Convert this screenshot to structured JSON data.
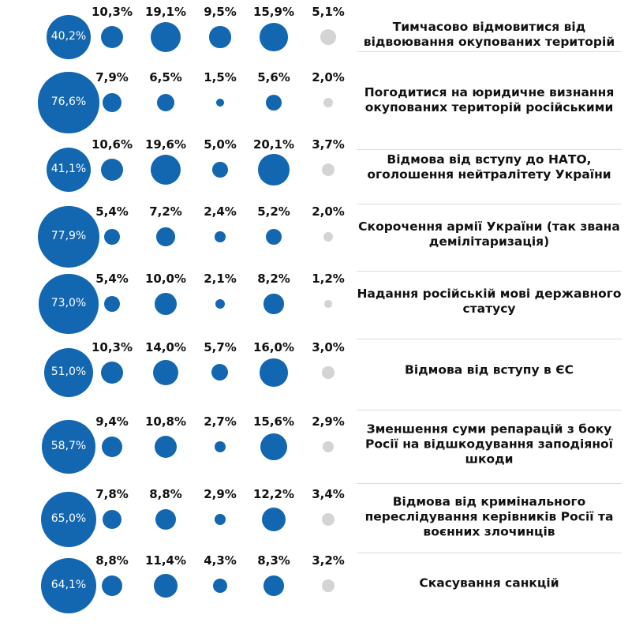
{
  "colors": {
    "main": "#1366b0",
    "secondary": "#1366b0",
    "last": "#d4d4d4"
  },
  "chart_data": {
    "type": "bubble-table",
    "rows": [
      {
        "label": "Тимчасово відмовитися від відвоювання окупованих територій",
        "main": "40,2%",
        "values": [
          "10,3%",
          "19,1%",
          "9,5%",
          "15,9%",
          "5,1%"
        ]
      },
      {
        "label": "Погодитися на юридичне визнання окупованих територій російськими",
        "main": "76,6%",
        "values": [
          "7,9%",
          "6,5%",
          "1,5%",
          "5,6%",
          "2,0%"
        ]
      },
      {
        "label": "Відмова від вступу до НАТО, оголошення нейтралітету України",
        "main": "41,1%",
        "values": [
          "10,6%",
          "19,6%",
          "5,0%",
          "20,1%",
          "3,7%"
        ]
      },
      {
        "label": "Скорочення армії України (так звана демілітаризація)",
        "main": "77,9%",
        "values": [
          "5,4%",
          "7,2%",
          "2,4%",
          "5,2%",
          "2,0%"
        ]
      },
      {
        "label": "Надання російській мові державного статусу",
        "main": "73,0%",
        "values": [
          "5,4%",
          "10,0%",
          "2,1%",
          "8,2%",
          "1,2%"
        ]
      },
      {
        "label": "Відмова від вступу в ЄС",
        "main": "51,0%",
        "values": [
          "10,3%",
          "14,0%",
          "5,7%",
          "16,0%",
          "3,0%"
        ]
      },
      {
        "label": "Зменшення суми репарацій з боку Росії на відшкодування заподіяної шкоди",
        "main": "58,7%",
        "values": [
          "9,4%",
          "10,8%",
          "2,7%",
          "15,6%",
          "2,9%"
        ]
      },
      {
        "label": "Відмова від кримінального переслідування керівників Росії та воєнних злочинців",
        "main": "65,0%",
        "values": [
          "7,8%",
          "8,8%",
          "2,9%",
          "12,2%",
          "3,4%"
        ]
      },
      {
        "label": "Скасування санкцій",
        "main": "64,1%",
        "values": [
          "8,8%",
          "11,4%",
          "4,3%",
          "8,3%",
          "3,2%"
        ]
      }
    ]
  }
}
